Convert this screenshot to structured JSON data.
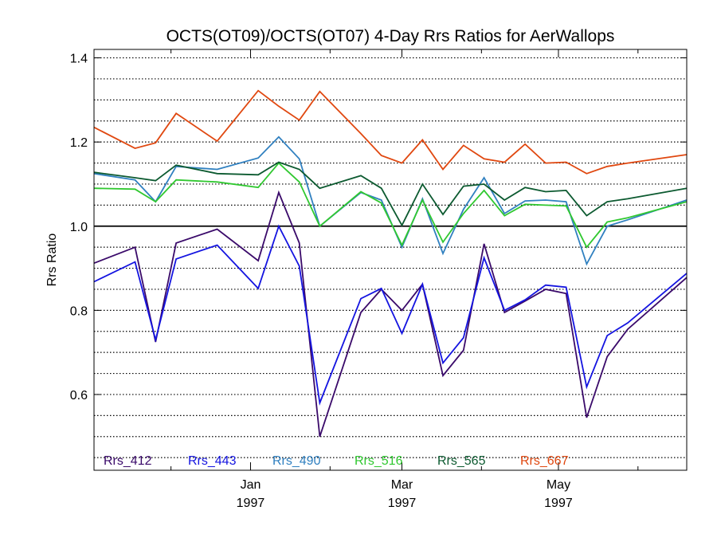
{
  "chart_data": {
    "type": "line",
    "title": "OCTS(OT09)/OCTS(OT07) 4-Day Rrs Ratios for AerWallops",
    "xlabel": "",
    "ylabel": "Rrs Ratio",
    "xlim": [
      "1996-11-01",
      "1997-06-20"
    ],
    "ylim": [
      0.42,
      1.42
    ],
    "yticks": [
      "1.4",
      "1.2",
      "1.0",
      "0.8",
      "0.6"
    ],
    "ytick_values": [
      1.4,
      1.2,
      1.0,
      0.8,
      0.6
    ],
    "xticks": [
      {
        "date": "1997-01-01",
        "month": "Jan",
        "year": "1997"
      },
      {
        "date": "1997-03-01",
        "month": "Mar",
        "year": "1997"
      },
      {
        "date": "1997-05-01",
        "month": "May",
        "year": "1997"
      }
    ],
    "minor_xticks": [
      "1996-12-01",
      "1997-02-01",
      "1997-04-01",
      "1997-06-01"
    ],
    "grid": "horizontal dotted",
    "reference_line": 1.0,
    "legend_position": "bottom",
    "series": [
      {
        "name": "Rrs_412",
        "color": "#3a0a6a",
        "dates": [
          "1996-11-01",
          "1996-11-17",
          "1996-11-25",
          "1996-12-03",
          "1996-12-19",
          "1997-01-04",
          "1997-01-12",
          "1997-01-20",
          "1997-01-28",
          "1997-02-13",
          "1997-02-21",
          "1997-03-01",
          "1997-03-09",
          "1997-03-17",
          "1997-03-25",
          "1997-04-02",
          "1997-04-10",
          "1997-04-18",
          "1997-04-26",
          "1997-05-04",
          "1997-05-12",
          "1997-05-20",
          "1997-05-28",
          "1997-06-20"
        ],
        "values": [
          0.912,
          0.95,
          0.725,
          0.96,
          0.993,
          0.918,
          1.08,
          0.96,
          0.5,
          0.795,
          0.85,
          0.8,
          0.862,
          0.645,
          0.705,
          0.958,
          0.795,
          0.822,
          0.85,
          0.84,
          0.545,
          0.69,
          0.755,
          0.878
        ]
      },
      {
        "name": "Rrs_443",
        "color": "#1414e0",
        "dates": [
          "1996-11-01",
          "1996-11-17",
          "1996-11-25",
          "1996-12-03",
          "1996-12-19",
          "1997-01-04",
          "1997-01-12",
          "1997-01-20",
          "1997-01-28",
          "1997-02-13",
          "1997-02-21",
          "1997-03-01",
          "1997-03-09",
          "1997-03-17",
          "1997-03-25",
          "1997-04-02",
          "1997-04-10",
          "1997-04-18",
          "1997-04-26",
          "1997-05-04",
          "1997-05-12",
          "1997-05-20",
          "1997-05-28",
          "1997-06-20"
        ],
        "values": [
          0.868,
          0.915,
          0.73,
          0.922,
          0.955,
          0.852,
          1.0,
          0.905,
          0.58,
          0.828,
          0.852,
          0.745,
          0.862,
          0.675,
          0.735,
          0.925,
          0.8,
          0.825,
          0.86,
          0.855,
          0.618,
          0.74,
          0.77,
          0.888
        ]
      },
      {
        "name": "Rrs_490",
        "color": "#3080c0",
        "dates": [
          "1996-11-01",
          "1996-11-17",
          "1996-11-25",
          "1996-12-03",
          "1996-12-19",
          "1997-01-04",
          "1997-01-12",
          "1997-01-20",
          "1997-01-28",
          "1997-02-13",
          "1997-02-21",
          "1997-03-01",
          "1997-03-09",
          "1997-03-17",
          "1997-03-25",
          "1997-04-02",
          "1997-04-10",
          "1997-04-18",
          "1997-04-26",
          "1997-05-04",
          "1997-05-12",
          "1997-05-20",
          "1997-05-28",
          "1997-06-20"
        ],
        "values": [
          1.125,
          1.11,
          1.058,
          1.142,
          1.135,
          1.162,
          1.212,
          1.16,
          1.0,
          1.08,
          1.062,
          0.95,
          1.065,
          0.935,
          1.04,
          1.115,
          1.03,
          1.06,
          1.062,
          1.058,
          0.91,
          1.0,
          1.015,
          1.062
        ]
      },
      {
        "name": "Rrs_516",
        "color": "#30c830",
        "dates": [
          "1996-11-01",
          "1996-11-17",
          "1996-11-25",
          "1996-12-03",
          "1996-12-19",
          "1997-01-04",
          "1997-01-12",
          "1997-01-20",
          "1997-01-28",
          "1997-02-13",
          "1997-02-21",
          "1997-03-01",
          "1997-03-09",
          "1997-03-17",
          "1997-03-25",
          "1997-04-02",
          "1997-04-10",
          "1997-04-18",
          "1997-04-26",
          "1997-05-04",
          "1997-05-12",
          "1997-05-20",
          "1997-05-28",
          "1997-06-20"
        ],
        "values": [
          1.09,
          1.088,
          1.058,
          1.11,
          1.105,
          1.092,
          1.15,
          1.105,
          1.0,
          1.082,
          1.055,
          0.955,
          1.062,
          0.962,
          1.03,
          1.085,
          1.025,
          1.052,
          1.05,
          1.048,
          0.95,
          1.01,
          1.02,
          1.058
        ]
      },
      {
        "name": "Rrs_565",
        "color": "#0c5a30",
        "dates": [
          "1996-11-01",
          "1996-11-17",
          "1996-11-25",
          "1996-12-03",
          "1996-12-19",
          "1997-01-04",
          "1997-01-12",
          "1997-01-20",
          "1997-01-28",
          "1997-02-13",
          "1997-02-21",
          "1997-03-01",
          "1997-03-09",
          "1997-03-17",
          "1997-03-25",
          "1997-04-02",
          "1997-04-10",
          "1997-04-18",
          "1997-04-26",
          "1997-05-04",
          "1997-05-12",
          "1997-05-20",
          "1997-05-28",
          "1997-06-20"
        ],
        "values": [
          1.128,
          1.115,
          1.108,
          1.145,
          1.125,
          1.122,
          1.152,
          1.135,
          1.09,
          1.12,
          1.09,
          1.002,
          1.1,
          1.028,
          1.095,
          1.1,
          1.062,
          1.092,
          1.082,
          1.085,
          1.025,
          1.058,
          1.065,
          1.09
        ]
      },
      {
        "name": "Rrs_667",
        "color": "#e04810",
        "dates": [
          "1996-11-01",
          "1996-11-17",
          "1996-11-25",
          "1996-12-03",
          "1996-12-19",
          "1997-01-04",
          "1997-01-12",
          "1997-01-20",
          "1997-01-28",
          "1997-02-13",
          "1997-02-21",
          "1997-03-01",
          "1997-03-09",
          "1997-03-17",
          "1997-03-25",
          "1997-04-02",
          "1997-04-10",
          "1997-04-18",
          "1997-04-26",
          "1997-05-04",
          "1997-05-12",
          "1997-05-20",
          "1997-05-28",
          "1997-06-20"
        ],
        "values": [
          1.235,
          1.185,
          1.198,
          1.268,
          1.202,
          1.322,
          1.285,
          1.252,
          1.32,
          1.22,
          1.168,
          1.15,
          1.205,
          1.135,
          1.192,
          1.16,
          1.152,
          1.195,
          1.15,
          1.152,
          1.125,
          1.142,
          1.15,
          1.17
        ]
      }
    ]
  }
}
